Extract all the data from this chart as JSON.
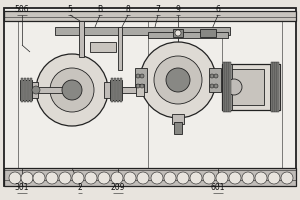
{
  "bg_color": "#e8e4de",
  "panel_color": "#dedad4",
  "rail_color": "#c8c4be",
  "gray1": "#aaa9a5",
  "gray2": "#888884",
  "gray3": "#c0bcb8",
  "white_bg": "#f0eeea",
  "line_color": "#222222",
  "label_color": "#111111",
  "label_fontsize": 5.5,
  "figsize": [
    3.0,
    2.0
  ],
  "dpi": 100
}
